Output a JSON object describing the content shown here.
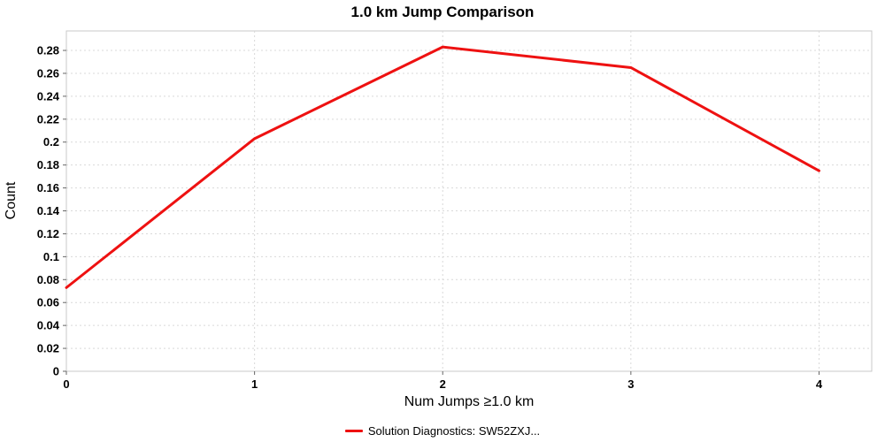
{
  "chart_data": {
    "type": "line",
    "title": "1.0 km Jump Comparison",
    "xlabel": "Num Jumps ≥1.0 km",
    "ylabel": "Count",
    "x": [
      0,
      1,
      2,
      3,
      4
    ],
    "series": [
      {
        "name": "Solution Diagnostics: SW52ZXJ...",
        "color": "#ee1111",
        "values": [
          0.073,
          0.203,
          0.283,
          0.265,
          0.175
        ]
      }
    ],
    "x_axis": {
      "ticks": [
        "0",
        "1",
        "2",
        "3",
        "4"
      ],
      "min": 0,
      "max": 4.28
    },
    "y_axis": {
      "ticks": [
        "0",
        "0.02",
        "0.04",
        "0.06",
        "0.08",
        "0.1",
        "0.12",
        "0.14",
        "0.16",
        "0.18",
        "0.2",
        "0.22",
        "0.24",
        "0.26",
        "0.28"
      ],
      "min": 0,
      "max": 0.297
    },
    "style": {
      "grid": true,
      "grid_color": "#d9d9d9",
      "border_color": "#c8c8c8",
      "tick_color": "#666666",
      "legend_position": "bottom"
    }
  }
}
